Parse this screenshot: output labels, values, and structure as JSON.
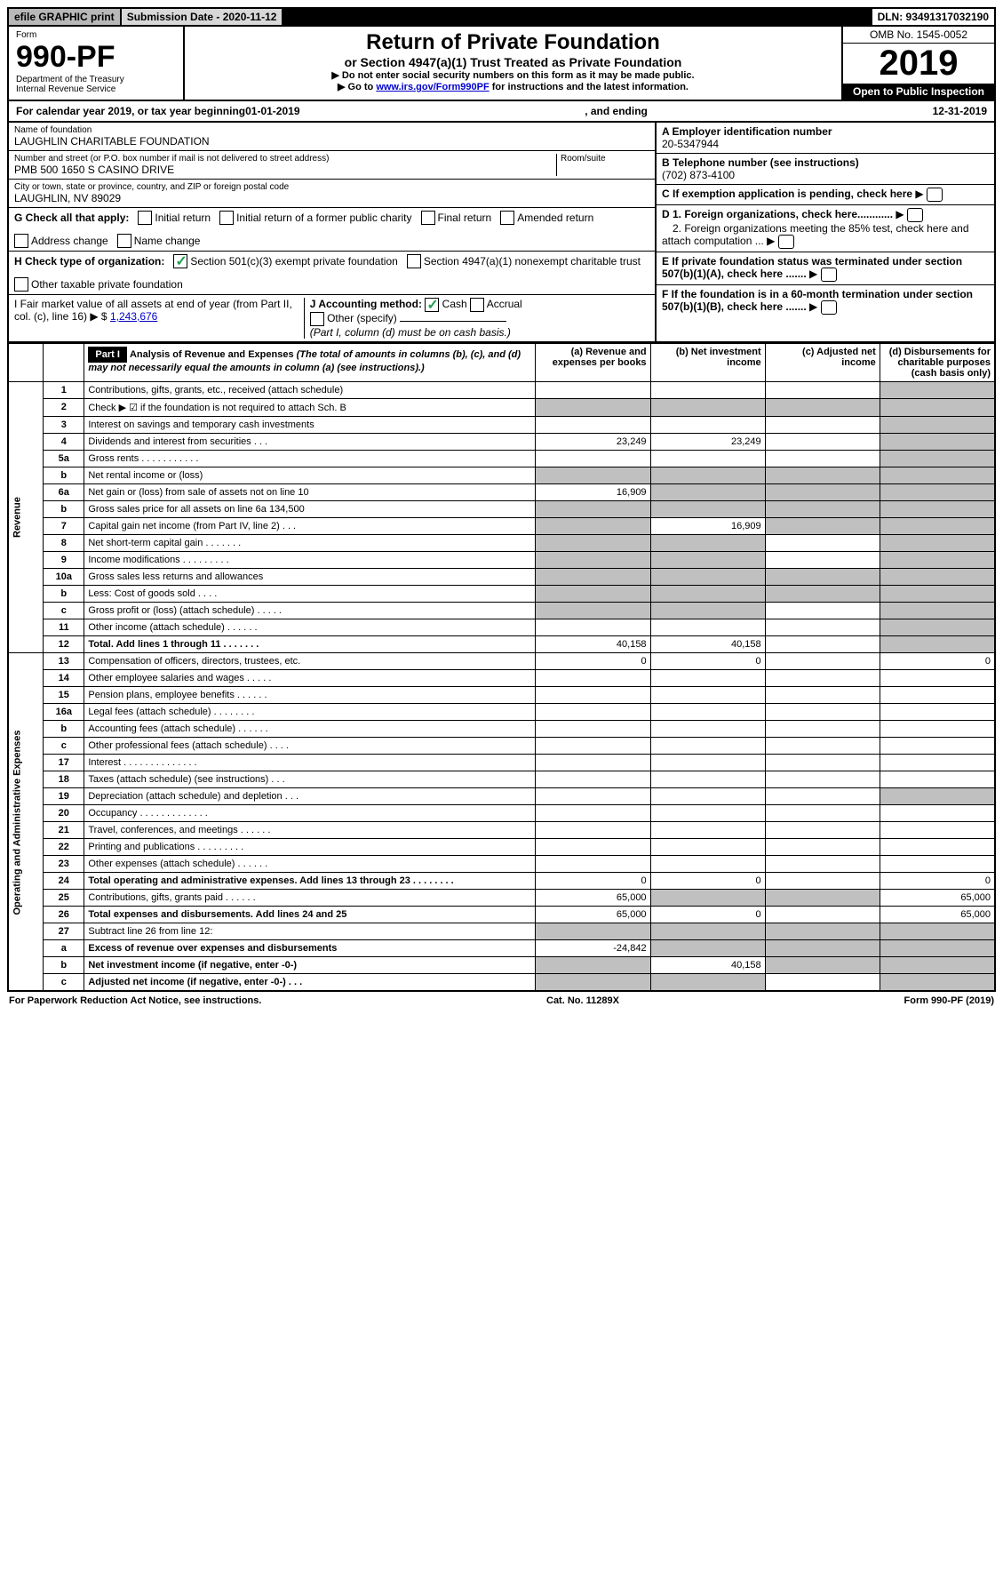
{
  "top": {
    "efile": "efile GRAPHIC print",
    "submission": "Submission Date - 2020-11-12",
    "dln": "DLN: 93491317032190"
  },
  "header": {
    "form_label": "Form",
    "form_number": "990-PF",
    "dept": "Department of the Treasury",
    "irs": "Internal Revenue Service",
    "title": "Return of Private Foundation",
    "subtitle": "or Section 4947(a)(1) Trust Treated as Private Foundation",
    "instr1": "▶ Do not enter social security numbers on this form as it may be made public.",
    "instr2_prefix": "▶ Go to ",
    "instr2_link": "www.irs.gov/Form990PF",
    "instr2_suffix": " for instructions and the latest information.",
    "omb": "OMB No. 1545-0052",
    "year": "2019",
    "open": "Open to Public Inspection"
  },
  "calendar": {
    "prefix": "For calendar year 2019, or tax year beginning ",
    "begin": "01-01-2019",
    "mid": " , and ending ",
    "end": "12-31-2019"
  },
  "info": {
    "name_label": "Name of foundation",
    "name": "LAUGHLIN CHARITABLE FOUNDATION",
    "addr_label": "Number and street (or P.O. box number if mail is not delivered to street address)",
    "addr": "PMB 500 1650 S CASINO DRIVE",
    "room_label": "Room/suite",
    "city_label": "City or town, state or province, country, and ZIP or foreign postal code",
    "city": "LAUGHLIN, NV  89029",
    "ein_label": "A Employer identification number",
    "ein": "20-5347944",
    "phone_label": "B Telephone number (see instructions)",
    "phone": "(702) 873-4100",
    "c_label": "C If exemption application is pending, check here",
    "d1": "D 1. Foreign organizations, check here............",
    "d2": "2. Foreign organizations meeting the 85% test, check here and attach computation ...",
    "e_label": "E  If private foundation status was terminated under section 507(b)(1)(A), check here .......",
    "f_label": "F  If the foundation is in a 60-month termination under section 507(b)(1)(B), check here .......",
    "g_label": "G Check all that apply:",
    "g_opts": [
      "Initial return",
      "Initial return of a former public charity",
      "Final return",
      "Amended return",
      "Address change",
      "Name change"
    ],
    "h_label": "H Check type of organization:",
    "h_opt1": "Section 501(c)(3) exempt private foundation",
    "h_opt2": "Section 4947(a)(1) nonexempt charitable trust",
    "h_opt3": "Other taxable private foundation",
    "i_label": "I Fair market value of all assets at end of year (from Part II, col. (c), line 16) ▶ $",
    "i_value": "1,243,676",
    "j_label": "J Accounting method:",
    "j_cash": "Cash",
    "j_accrual": "Accrual",
    "j_other": "Other (specify)",
    "j_note": "(Part I, column (d) must be on cash basis.)"
  },
  "part1": {
    "label": "Part I",
    "title": "Analysis of Revenue and Expenses",
    "note": "(The total of amounts in columns (b), (c), and (d) may not necessarily equal the amounts in column (a) (see instructions).)",
    "col_a": "(a)    Revenue and expenses per books",
    "col_b": "(b)   Net investment income",
    "col_c": "(c)   Adjusted net income",
    "col_d": "(d)   Disbursements for charitable purposes (cash basis only)"
  },
  "sections": {
    "revenue": "Revenue",
    "expenses": "Operating and Administrative Expenses"
  },
  "rows": [
    {
      "n": "1",
      "desc": "Contributions, gifts, grants, etc., received (attach schedule)",
      "a": "",
      "b": "",
      "c": "",
      "d": "",
      "sh": [
        "d"
      ]
    },
    {
      "n": "2",
      "desc": "Check ▶ ☑ if the foundation is not required to attach Sch. B",
      "a": "",
      "b": "",
      "c": "",
      "d": "",
      "sh": [
        "a",
        "b",
        "c",
        "d"
      ],
      "nob": true
    },
    {
      "n": "3",
      "desc": "Interest on savings and temporary cash investments",
      "a": "",
      "b": "",
      "c": "",
      "d": "",
      "sh": [
        "d"
      ]
    },
    {
      "n": "4",
      "desc": "Dividends and interest from securities  .  .  .",
      "a": "23,249",
      "b": "23,249",
      "c": "",
      "d": "",
      "sh": [
        "d"
      ]
    },
    {
      "n": "5a",
      "desc": "Gross rents  .  .  .  .  .  .  .  .  .  .  .",
      "a": "",
      "b": "",
      "c": "",
      "d": "",
      "sh": [
        "d"
      ]
    },
    {
      "n": "b",
      "desc": "Net rental income or (loss)  ",
      "a": "",
      "b": "",
      "c": "",
      "d": "",
      "sh": [
        "a",
        "b",
        "c",
        "d"
      ]
    },
    {
      "n": "6a",
      "desc": "Net gain or (loss) from sale of assets not on line 10",
      "a": "16,909",
      "b": "",
      "c": "",
      "d": "",
      "sh": [
        "b",
        "c",
        "d"
      ]
    },
    {
      "n": "b",
      "desc": "Gross sales price for all assets on line 6a            134,500",
      "a": "",
      "b": "",
      "c": "",
      "d": "",
      "sh": [
        "a",
        "b",
        "c",
        "d"
      ]
    },
    {
      "n": "7",
      "desc": "Capital gain net income (from Part IV, line 2)  .  .  .",
      "a": "",
      "b": "16,909",
      "c": "",
      "d": "",
      "sh": [
        "a",
        "c",
        "d"
      ]
    },
    {
      "n": "8",
      "desc": "Net short-term capital gain  .  .  .  .  .  .  .",
      "a": "",
      "b": "",
      "c": "",
      "d": "",
      "sh": [
        "a",
        "b",
        "d"
      ]
    },
    {
      "n": "9",
      "desc": "Income modifications  .  .  .  .  .  .  .  .  .",
      "a": "",
      "b": "",
      "c": "",
      "d": "",
      "sh": [
        "a",
        "b",
        "d"
      ]
    },
    {
      "n": "10a",
      "desc": "Gross sales less returns and allowances",
      "a": "",
      "b": "",
      "c": "",
      "d": "",
      "sh": [
        "a",
        "b",
        "c",
        "d"
      ]
    },
    {
      "n": "b",
      "desc": "Less: Cost of goods sold  .  .  .  .",
      "a": "",
      "b": "",
      "c": "",
      "d": "",
      "sh": [
        "a",
        "b",
        "c",
        "d"
      ]
    },
    {
      "n": "c",
      "desc": "Gross profit or (loss) (attach schedule)  .  .  .  .  .",
      "a": "",
      "b": "",
      "c": "",
      "d": "",
      "sh": [
        "a",
        "b",
        "d"
      ]
    },
    {
      "n": "11",
      "desc": "Other income (attach schedule)  .  .  .  .  .  .",
      "a": "",
      "b": "",
      "c": "",
      "d": "",
      "sh": [
        "d"
      ]
    },
    {
      "n": "12",
      "desc": "Total. Add lines 1 through 11  .  .  .  .  .  .  .",
      "a": "40,158",
      "b": "40,158",
      "c": "",
      "d": "",
      "sh": [
        "d"
      ],
      "bold": true
    }
  ],
  "exp_rows": [
    {
      "n": "13",
      "desc": "Compensation of officers, directors, trustees, etc.",
      "a": "0",
      "b": "0",
      "c": "",
      "d": "0"
    },
    {
      "n": "14",
      "desc": "Other employee salaries and wages  .  .  .  .  .",
      "a": "",
      "b": "",
      "c": "",
      "d": ""
    },
    {
      "n": "15",
      "desc": "Pension plans, employee benefits  .  .  .  .  .  .",
      "a": "",
      "b": "",
      "c": "",
      "d": ""
    },
    {
      "n": "16a",
      "desc": "Legal fees (attach schedule)  .  .  .  .  .  .  .  .",
      "a": "",
      "b": "",
      "c": "",
      "d": ""
    },
    {
      "n": "b",
      "desc": "Accounting fees (attach schedule)  .  .  .  .  .  .",
      "a": "",
      "b": "",
      "c": "",
      "d": ""
    },
    {
      "n": "c",
      "desc": "Other professional fees (attach schedule)  .  .  .  .",
      "a": "",
      "b": "",
      "c": "",
      "d": ""
    },
    {
      "n": "17",
      "desc": "Interest  .  .  .  .  .  .  .  .  .  .  .  .  .  .",
      "a": "",
      "b": "",
      "c": "",
      "d": ""
    },
    {
      "n": "18",
      "desc": "Taxes (attach schedule) (see instructions)  .  .  .",
      "a": "",
      "b": "",
      "c": "",
      "d": ""
    },
    {
      "n": "19",
      "desc": "Depreciation (attach schedule) and depletion  .  .  .",
      "a": "",
      "b": "",
      "c": "",
      "d": "",
      "sh": [
        "d"
      ]
    },
    {
      "n": "20",
      "desc": "Occupancy  .  .  .  .  .  .  .  .  .  .  .  .  .",
      "a": "",
      "b": "",
      "c": "",
      "d": ""
    },
    {
      "n": "21",
      "desc": "Travel, conferences, and meetings  .  .  .  .  .  .",
      "a": "",
      "b": "",
      "c": "",
      "d": ""
    },
    {
      "n": "22",
      "desc": "Printing and publications  .  .  .  .  .  .  .  .  .",
      "a": "",
      "b": "",
      "c": "",
      "d": ""
    },
    {
      "n": "23",
      "desc": "Other expenses (attach schedule)  .  .  .  .  .  .",
      "a": "",
      "b": "",
      "c": "",
      "d": ""
    },
    {
      "n": "24",
      "desc": "Total operating and administrative expenses. Add lines 13 through 23  .  .  .  .  .  .  .  .",
      "a": "0",
      "b": "0",
      "c": "",
      "d": "0",
      "bold": true
    },
    {
      "n": "25",
      "desc": "Contributions, gifts, grants paid  .  .  .  .  .  .",
      "a": "65,000",
      "b": "",
      "c": "",
      "d": "65,000",
      "sh": [
        "b",
        "c"
      ]
    },
    {
      "n": "26",
      "desc": "Total expenses and disbursements. Add lines 24 and 25",
      "a": "65,000",
      "b": "0",
      "c": "",
      "d": "65,000",
      "bold": true
    },
    {
      "n": "27",
      "desc": "Subtract line 26 from line 12:",
      "a": "",
      "b": "",
      "c": "",
      "d": "",
      "sh": [
        "a",
        "b",
        "c",
        "d"
      ]
    },
    {
      "n": "a",
      "desc": "Excess of revenue over expenses and disbursements",
      "a": "-24,842",
      "b": "",
      "c": "",
      "d": "",
      "sh": [
        "b",
        "c",
        "d"
      ],
      "bold": true
    },
    {
      "n": "b",
      "desc": "Net investment income (if negative, enter -0-)",
      "a": "",
      "b": "40,158",
      "c": "",
      "d": "",
      "sh": [
        "a",
        "c",
        "d"
      ],
      "bold": true
    },
    {
      "n": "c",
      "desc": "Adjusted net income (if negative, enter -0-)  .  .  .",
      "a": "",
      "b": "",
      "c": "",
      "d": "",
      "sh": [
        "a",
        "b",
        "d"
      ],
      "bold": true
    }
  ],
  "footer": {
    "left": "For Paperwork Reduction Act Notice, see instructions.",
    "mid": "Cat. No. 11289X",
    "right": "Form 990-PF (2019)"
  }
}
